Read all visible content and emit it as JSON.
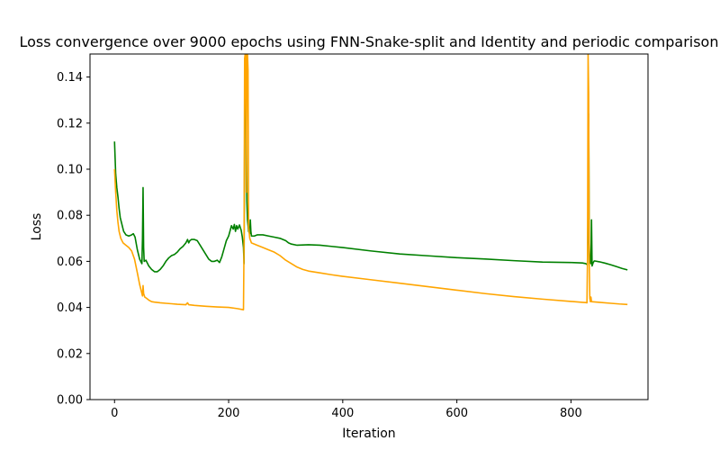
{
  "chart_data": {
    "type": "line",
    "title": "Loss convergence over 9000 epochs using FNN-Snake-split and Identity and periodic comparison",
    "xlabel": "Iteration",
    "ylabel": "Loss",
    "xlim": [
      -43,
      935
    ],
    "ylim": [
      0,
      0.15
    ],
    "xticks": [
      0,
      200,
      400,
      600,
      800
    ],
    "yticks": [
      0.0,
      0.02,
      0.04,
      0.06,
      0.08,
      0.1,
      0.12,
      0.14
    ],
    "xtick_labels": [
      "0",
      "200",
      "400",
      "600",
      "800"
    ],
    "ytick_labels": [
      "0.00",
      "0.02",
      "0.04",
      "0.06",
      "0.08",
      "0.10",
      "0.12",
      "0.14"
    ],
    "grid": false,
    "legend": "none",
    "series": [
      {
        "color": "#008000",
        "points": [
          [
            0,
            0.112
          ],
          [
            1,
            0.105
          ],
          [
            2,
            0.098
          ],
          [
            4,
            0.092
          ],
          [
            6,
            0.088
          ],
          [
            8,
            0.083
          ],
          [
            10,
            0.079
          ],
          [
            13,
            0.076
          ],
          [
            16,
            0.073
          ],
          [
            20,
            0.0715
          ],
          [
            25,
            0.071
          ],
          [
            30,
            0.0715
          ],
          [
            33,
            0.072
          ],
          [
            36,
            0.0705
          ],
          [
            40,
            0.065
          ],
          [
            44,
            0.061
          ],
          [
            48,
            0.059
          ],
          [
            49,
            0.07
          ],
          [
            50,
            0.092
          ],
          [
            51,
            0.066
          ],
          [
            52,
            0.06
          ],
          [
            55,
            0.0605
          ],
          [
            60,
            0.058
          ],
          [
            65,
            0.0565
          ],
          [
            70,
            0.0555
          ],
          [
            75,
            0.0555
          ],
          [
            80,
            0.0565
          ],
          [
            85,
            0.058
          ],
          [
            90,
            0.06
          ],
          [
            95,
            0.0615
          ],
          [
            100,
            0.0625
          ],
          [
            105,
            0.063
          ],
          [
            110,
            0.064
          ],
          [
            115,
            0.0655
          ],
          [
            120,
            0.0665
          ],
          [
            125,
            0.068
          ],
          [
            128,
            0.0695
          ],
          [
            130,
            0.068
          ],
          [
            132,
            0.069
          ],
          [
            135,
            0.0695
          ],
          [
            140,
            0.0695
          ],
          [
            145,
            0.069
          ],
          [
            150,
            0.067
          ],
          [
            155,
            0.065
          ],
          [
            160,
            0.063
          ],
          [
            165,
            0.061
          ],
          [
            170,
            0.06
          ],
          [
            175,
            0.06
          ],
          [
            180,
            0.0605
          ],
          [
            184,
            0.0595
          ],
          [
            188,
            0.062
          ],
          [
            192,
            0.0655
          ],
          [
            196,
            0.069
          ],
          [
            200,
            0.071
          ],
          [
            205,
            0.0755
          ],
          [
            208,
            0.074
          ],
          [
            210,
            0.076
          ],
          [
            212,
            0.073
          ],
          [
            214,
            0.0755
          ],
          [
            216,
            0.074
          ],
          [
            219,
            0.0758
          ],
          [
            222,
            0.0735
          ],
          [
            224,
            0.0705
          ],
          [
            226,
            0.066
          ],
          [
            227,
            0.059
          ],
          [
            228,
            0.112
          ],
          [
            229,
            0.14
          ],
          [
            230,
            0.147
          ],
          [
            231,
            0.118
          ],
          [
            232,
            0.086
          ],
          [
            233,
            0.078
          ],
          [
            235,
            0.073
          ],
          [
            237,
            0.072
          ],
          [
            238,
            0.078
          ],
          [
            239,
            0.073
          ],
          [
            240,
            0.071
          ],
          [
            245,
            0.071
          ],
          [
            250,
            0.0715
          ],
          [
            260,
            0.0715
          ],
          [
            270,
            0.071
          ],
          [
            280,
            0.0705
          ],
          [
            290,
            0.07
          ],
          [
            300,
            0.069
          ],
          [
            305,
            0.068
          ],
          [
            310,
            0.0675
          ],
          [
            320,
            0.067
          ],
          [
            340,
            0.0672
          ],
          [
            360,
            0.067
          ],
          [
            380,
            0.0665
          ],
          [
            400,
            0.066
          ],
          [
            450,
            0.0645
          ],
          [
            500,
            0.0632
          ],
          [
            550,
            0.0624
          ],
          [
            600,
            0.0616
          ],
          [
            650,
            0.061
          ],
          [
            700,
            0.0603
          ],
          [
            750,
            0.0597
          ],
          [
            800,
            0.0595
          ],
          [
            820,
            0.0593
          ],
          [
            826,
            0.059
          ],
          [
            829,
            0.0585
          ],
          [
            830,
            0.08
          ],
          [
            831,
            0.124
          ],
          [
            832,
            0.068
          ],
          [
            833,
            0.06
          ],
          [
            835,
            0.059
          ],
          [
            836,
            0.078
          ],
          [
            837,
            0.058
          ],
          [
            839,
            0.0595
          ],
          [
            841,
            0.0602
          ],
          [
            850,
            0.0598
          ],
          [
            860,
            0.0592
          ],
          [
            870,
            0.0585
          ],
          [
            880,
            0.0577
          ],
          [
            890,
            0.0569
          ],
          [
            899,
            0.0563
          ]
        ]
      },
      {
        "color": "#FFA500",
        "points": [
          [
            0,
            0.1
          ],
          [
            2,
            0.09
          ],
          [
            4,
            0.082
          ],
          [
            6,
            0.077
          ],
          [
            8,
            0.073
          ],
          [
            11,
            0.07
          ],
          [
            15,
            0.068
          ],
          [
            20,
            0.067
          ],
          [
            25,
            0.066
          ],
          [
            30,
            0.0645
          ],
          [
            35,
            0.061
          ],
          [
            40,
            0.055
          ],
          [
            44,
            0.05
          ],
          [
            47,
            0.047
          ],
          [
            49,
            0.045
          ],
          [
            50,
            0.0495
          ],
          [
            51,
            0.046
          ],
          [
            53,
            0.0445
          ],
          [
            56,
            0.044
          ],
          [
            60,
            0.0432
          ],
          [
            65,
            0.0425
          ],
          [
            70,
            0.0423
          ],
          [
            80,
            0.042
          ],
          [
            90,
            0.0418
          ],
          [
            100,
            0.0416
          ],
          [
            110,
            0.0414
          ],
          [
            125,
            0.0412
          ],
          [
            128,
            0.042
          ],
          [
            130,
            0.0412
          ],
          [
            140,
            0.0409
          ],
          [
            160,
            0.0405
          ],
          [
            180,
            0.0402
          ],
          [
            200,
            0.04
          ],
          [
            215,
            0.0395
          ],
          [
            226,
            0.039
          ],
          [
            227,
            0.068
          ],
          [
            228,
            0.148
          ],
          [
            229,
            0.15
          ],
          [
            230,
            0.15
          ],
          [
            231,
            0.09
          ],
          [
            232,
            0.15
          ],
          [
            233,
            0.15
          ],
          [
            234,
            0.143
          ],
          [
            235,
            0.075
          ],
          [
            237,
            0.07
          ],
          [
            240,
            0.068
          ],
          [
            250,
            0.067
          ],
          [
            260,
            0.066
          ],
          [
            270,
            0.065
          ],
          [
            280,
            0.064
          ],
          [
            290,
            0.0625
          ],
          [
            300,
            0.0605
          ],
          [
            310,
            0.059
          ],
          [
            320,
            0.0575
          ],
          [
            330,
            0.0565
          ],
          [
            340,
            0.0558
          ],
          [
            360,
            0.055
          ],
          [
            380,
            0.0542
          ],
          [
            400,
            0.0535
          ],
          [
            450,
            0.052
          ],
          [
            500,
            0.0505
          ],
          [
            550,
            0.049
          ],
          [
            600,
            0.0475
          ],
          [
            650,
            0.046
          ],
          [
            700,
            0.0447
          ],
          [
            750,
            0.0436
          ],
          [
            800,
            0.0426
          ],
          [
            820,
            0.0422
          ],
          [
            826,
            0.0421
          ],
          [
            828,
            0.042
          ],
          [
            829,
            0.062
          ],
          [
            830,
            0.15
          ],
          [
            831,
            0.133
          ],
          [
            832,
            0.06
          ],
          [
            833,
            0.044
          ],
          [
            834,
            0.0425
          ],
          [
            835,
            0.0445
          ],
          [
            836,
            0.0425
          ],
          [
            850,
            0.0422
          ],
          [
            870,
            0.0418
          ],
          [
            885,
            0.0415
          ],
          [
            899,
            0.0413
          ]
        ]
      }
    ]
  }
}
